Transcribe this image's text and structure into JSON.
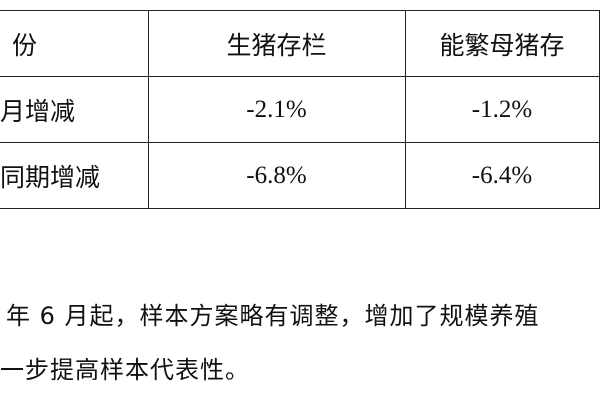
{
  "table": {
    "header": [
      "份",
      "生猪存栏",
      "能繁母猪存"
    ],
    "rows": [
      {
        "label": "月增减",
        "values": [
          "-2.1%",
          "-1.2%"
        ]
      },
      {
        "label": "同期增减",
        "values": [
          "-6.8%",
          "-6.4%"
        ]
      }
    ]
  },
  "paragraph": {
    "line1": "年 6 月起，样本方案略有调整，增加了规模养殖",
    "line2": "一步提高样本代表性。"
  }
}
